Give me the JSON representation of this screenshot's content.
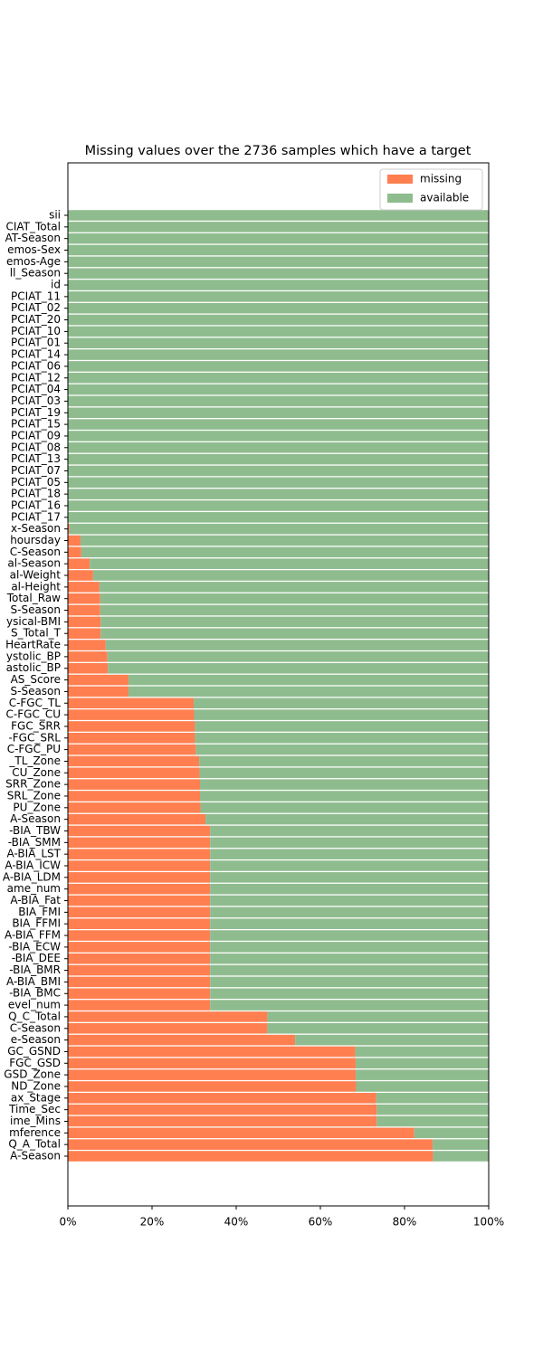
{
  "chart_data": {
    "type": "stacked-barh",
    "title": "Missing values over the 2736 samples which have a target",
    "categories": [
      "sii",
      "CIAT_Total",
      "AT-Season",
      "emos-Sex",
      "emos-Age",
      "ll_Season",
      "id",
      "PCIAT_11",
      "PCIAT_02",
      "PCIAT_20",
      "PCIAT_10",
      "PCIAT_01",
      "PCIAT_14",
      "PCIAT_06",
      "PCIAT_12",
      "PCIAT_04",
      "PCIAT_03",
      "PCIAT_19",
      "PCIAT_15",
      "PCIAT_09",
      "PCIAT_08",
      "PCIAT_13",
      "PCIAT_07",
      "PCIAT_05",
      "PCIAT_18",
      "PCIAT_16",
      "PCIAT_17",
      "x-Season",
      "hoursday",
      "C-Season",
      "al-Season",
      "al-Weight",
      "al-Height",
      "Total_Raw",
      "S-Season",
      "ysical-BMI",
      "S_Total_T",
      "HeartRate",
      "ystolic_BP",
      "astolic_BP",
      "AS_Score",
      "S-Season",
      "C-FGC_TL",
      "C-FGC_CU",
      "FGC_SRR",
      "-FGC_SRL",
      "C-FGC_PU",
      "_TL_Zone",
      "CU_Zone",
      "SRR_Zone",
      "SRL_Zone",
      "PU_Zone",
      "A-Season",
      "-BIA_TBW",
      "-BIA_SMM",
      "A-BIA_LST",
      "A-BIA_ICW",
      "A-BIA_LDM",
      "ame_num",
      "A-BIA_Fat",
      "BIA_FMI",
      "BIA_FFMI",
      "A-BIA_FFM",
      "-BIA_ECW",
      "-BIA_DEE",
      "-BIA_BMR",
      "A-BIA_BMI",
      "-BIA_BMC",
      "evel_num",
      "Q_C_Total",
      "C-Season",
      "e-Season",
      "GC_GSND",
      "FGC_GSD",
      "GSD_Zone",
      "ND_Zone",
      "ax_Stage",
      "Time_Sec",
      "ime_Mins",
      "mference",
      "Q_A_Total",
      "A-Season"
    ],
    "series": [
      {
        "name": "missing",
        "color": "#ff7f50",
        "values": [
          0,
          0,
          0,
          0,
          0,
          0,
          0,
          0,
          0,
          0,
          0,
          0,
          0,
          0,
          0,
          0,
          0,
          0,
          0,
          0,
          0,
          0,
          0,
          0,
          0,
          0,
          0,
          0.4,
          3.0,
          3.2,
          5.2,
          6.0,
          7.5,
          7.7,
          7.7,
          7.8,
          7.8,
          9.0,
          9.4,
          9.5,
          14.4,
          14.4,
          29.9,
          30.0,
          30.2,
          30.2,
          30.4,
          31.2,
          31.3,
          31.4,
          31.4,
          31.5,
          32.7,
          33.8,
          33.8,
          33.8,
          33.8,
          33.8,
          33.8,
          33.8,
          33.8,
          33.8,
          33.8,
          33.8,
          33.8,
          33.8,
          33.8,
          33.8,
          33.8,
          47.4,
          47.4,
          54.0,
          68.3,
          68.4,
          68.4,
          68.5,
          73.3,
          73.4,
          73.4,
          82.3,
          86.7,
          86.8
        ]
      },
      {
        "name": "available",
        "color": "#8fbc8f",
        "values": [
          100,
          100,
          100,
          100,
          100,
          100,
          100,
          100,
          100,
          100,
          100,
          100,
          100,
          100,
          100,
          100,
          100,
          100,
          100,
          100,
          100,
          100,
          100,
          100,
          100,
          100,
          100,
          99.6,
          97.0,
          96.8,
          94.8,
          94.0,
          92.5,
          92.3,
          92.3,
          92.2,
          92.2,
          91.0,
          90.6,
          90.5,
          85.6,
          85.6,
          70.1,
          70.0,
          69.8,
          69.8,
          69.6,
          68.8,
          68.7,
          68.6,
          68.6,
          68.5,
          67.3,
          66.2,
          66.2,
          66.2,
          66.2,
          66.2,
          66.2,
          66.2,
          66.2,
          66.2,
          66.2,
          66.2,
          66.2,
          66.2,
          66.2,
          66.2,
          66.2,
          52.6,
          52.6,
          46.0,
          31.7,
          31.6,
          31.6,
          31.5,
          26.7,
          26.6,
          26.6,
          17.7,
          13.3,
          13.2
        ]
      }
    ],
    "xlim": [
      0,
      100
    ],
    "xticks": [
      {
        "value": 0,
        "label": "0%"
      },
      {
        "value": 20,
        "label": "20%"
      },
      {
        "value": 40,
        "label": "40%"
      },
      {
        "value": 60,
        "label": "60%"
      },
      {
        "value": 80,
        "label": "80%"
      },
      {
        "value": 100,
        "label": "100%"
      }
    ],
    "legend": "upper right"
  }
}
